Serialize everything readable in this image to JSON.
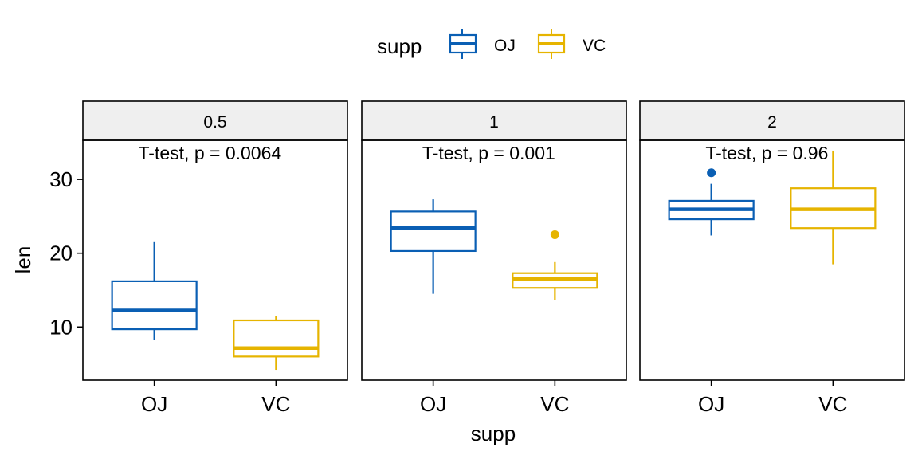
{
  "chart_data": {
    "type": "boxplot",
    "xlabel": "supp",
    "ylabel": "len",
    "ylim": [
      2.8,
      35.3
    ],
    "yticks": [
      10,
      20,
      30
    ],
    "categories": [
      "OJ",
      "VC"
    ],
    "legend": {
      "title": "supp",
      "position": "top",
      "items": [
        {
          "label": "OJ",
          "color": "#0a5fb4"
        },
        {
          "label": "VC",
          "color": "#e6b400"
        }
      ]
    },
    "panels": [
      {
        "strip": "0.5",
        "annotation": "T-test, p = 0.0064",
        "boxes": [
          {
            "group": "OJ",
            "min": 8.2,
            "q1": 9.7,
            "median": 12.25,
            "q3": 16.2,
            "max": 21.5,
            "outliers": []
          },
          {
            "group": "VC",
            "min": 4.2,
            "q1": 6.0,
            "median": 7.15,
            "q3": 10.9,
            "max": 11.5,
            "outliers": []
          }
        ]
      },
      {
        "strip": "1",
        "annotation": "T-test, p = 0.001",
        "boxes": [
          {
            "group": "OJ",
            "min": 14.5,
            "q1": 20.3,
            "median": 23.45,
            "q3": 25.65,
            "max": 27.3,
            "outliers": []
          },
          {
            "group": "VC",
            "min": 13.6,
            "q1": 15.3,
            "median": 16.5,
            "q3": 17.3,
            "max": 18.8,
            "outliers": [
              22.5
            ]
          }
        ]
      },
      {
        "strip": "2",
        "annotation": "T-test, p = 0.96",
        "boxes": [
          {
            "group": "OJ",
            "min": 22.4,
            "q1": 24.6,
            "median": 25.95,
            "q3": 27.1,
            "max": 29.4,
            "outliers": [
              30.9
            ]
          },
          {
            "group": "VC",
            "min": 18.5,
            "q1": 23.4,
            "median": 25.95,
            "q3": 28.8,
            "max": 33.9,
            "outliers": []
          }
        ]
      }
    ]
  }
}
